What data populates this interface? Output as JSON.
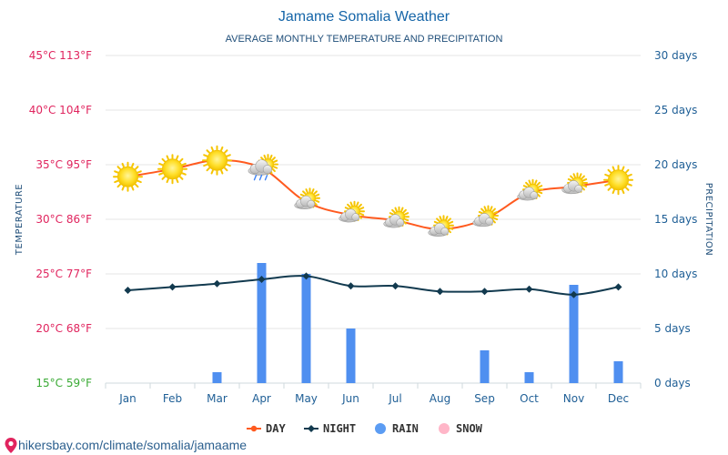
{
  "page": {
    "title": "Jamame Somalia Weather",
    "subtitle": "AVERAGE MONTHLY TEMPERATURE AND PRECIPITATION",
    "footer": "hikersbay.com/climate/somalia/jamaame"
  },
  "chart_data": {
    "type": "line",
    "categories": [
      "Jan",
      "Feb",
      "Mar",
      "Apr",
      "May",
      "Jun",
      "Jul",
      "Aug",
      "Sep",
      "Oct",
      "Nov",
      "Dec"
    ],
    "series": [
      {
        "name": "DAY",
        "kind": "line",
        "axis": "left",
        "color": "#ff5a1f",
        "values": [
          33.9,
          34.6,
          35.4,
          34.7,
          31.6,
          30.4,
          29.9,
          29.1,
          30.0,
          32.4,
          33.0,
          33.6
        ]
      },
      {
        "name": "NIGHT",
        "kind": "line",
        "axis": "left",
        "color": "#123a4f",
        "values": [
          23.5,
          23.8,
          24.1,
          24.5,
          24.8,
          23.9,
          23.9,
          23.4,
          23.4,
          23.6,
          23.1,
          23.8
        ]
      },
      {
        "name": "RAIN",
        "kind": "bar",
        "axis": "right",
        "color": "#4f8ff0",
        "values": [
          0,
          0,
          1,
          11,
          10,
          5,
          0,
          0,
          3,
          1,
          9,
          2
        ]
      },
      {
        "name": "SNOW",
        "kind": "bar",
        "axis": "right",
        "color": "#ffb6c8",
        "values": [
          0,
          0,
          0,
          0,
          0,
          0,
          0,
          0,
          0,
          0,
          0,
          0
        ]
      }
    ],
    "weather_icons": [
      "sun",
      "sun",
      "sun",
      "sun-cloud-rain",
      "sun-cloud",
      "sun-cloud",
      "sun-cloud",
      "sun-cloud",
      "sun-cloud",
      "sun-cloud",
      "sun-cloud",
      "sun"
    ],
    "left_axis": {
      "label": "TEMPERATURE",
      "ticks": [
        {
          "value": 15,
          "label": "15°C 59°F",
          "color": "#3aaa35"
        },
        {
          "value": 20,
          "label": "20°C 68°F",
          "color": "#e0245e"
        },
        {
          "value": 25,
          "label": "25°C 77°F",
          "color": "#e0245e"
        },
        {
          "value": 30,
          "label": "30°C 86°F",
          "color": "#e0245e"
        },
        {
          "value": 35,
          "label": "35°C 95°F",
          "color": "#e0245e"
        },
        {
          "value": 40,
          "label": "40°C 104°F",
          "color": "#e0245e"
        },
        {
          "value": 45,
          "label": "45°C 113°F",
          "color": "#e0245e"
        }
      ],
      "ylim": [
        15,
        45
      ]
    },
    "right_axis": {
      "label": "PRECIPITATION",
      "ticks": [
        {
          "value": 0,
          "label": "0 days"
        },
        {
          "value": 5,
          "label": "5 days"
        },
        {
          "value": 10,
          "label": "10 days"
        },
        {
          "value": 15,
          "label": "15 days"
        },
        {
          "value": 20,
          "label": "20 days"
        },
        {
          "value": 25,
          "label": "25 days"
        },
        {
          "value": 30,
          "label": "30 days"
        }
      ],
      "ylim": [
        0,
        30
      ]
    },
    "legend": {
      "position": "bottom",
      "items": [
        "DAY",
        "NIGHT",
        "RAIN",
        "SNOW"
      ]
    },
    "grid": true
  }
}
